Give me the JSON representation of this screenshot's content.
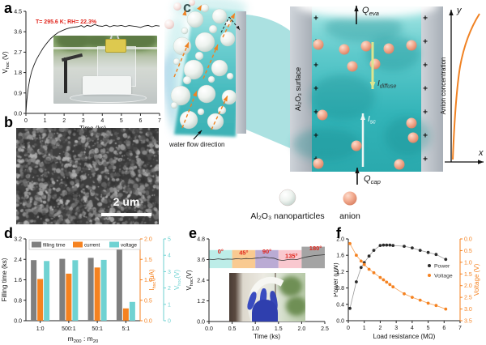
{
  "panels": {
    "a": "a",
    "b": "b",
    "c": "c",
    "d": "d",
    "e": "e",
    "f": "f"
  },
  "sem": {
    "scale_label": "2 um"
  },
  "diagram": {
    "q_eva": "Q~eva~",
    "q_cap": "Q~cap~",
    "i_diffuse": "I~diffuse~",
    "i_sc": "I~sc~",
    "surface_label": "Al₂O₃ surface",
    "flow_label": "water flow direction",
    "conc_label": "Anion concentration",
    "x_label": "x",
    "y_label": "y",
    "plus": "+",
    "legend": [
      {
        "type": "nanoparticle",
        "label": "Al₂O₃ nanoparticles"
      },
      {
        "type": "anion",
        "label": "anion"
      }
    ],
    "colors": {
      "water": "#33b4b8",
      "wall": "#b4bac1",
      "anion": "#f3ad92",
      "arrow_orange": "#f08223"
    }
  },
  "chart_data": [
    {
      "id": "a",
      "type": "line",
      "xlabel": "Time (ks)",
      "ylabel": "V~hoc~ (V)",
      "xlim": [
        0,
        7
      ],
      "ylim": [
        0,
        4.5
      ],
      "xticks": [
        {
          "v": 0,
          "l": "0"
        },
        {
          "v": 1,
          "l": "1"
        },
        {
          "v": 2,
          "l": "2"
        },
        {
          "v": 3,
          "l": "3"
        },
        {
          "v": 4,
          "l": "4"
        },
        {
          "v": 5,
          "l": "5"
        },
        {
          "v": 6,
          "l": "6"
        },
        {
          "v": 7,
          "l": "7"
        }
      ],
      "yticks": [
        {
          "v": 0,
          "l": "0.0"
        },
        {
          "v": 0.9,
          "l": "0.9"
        },
        {
          "v": 1.8,
          "l": "1.8"
        },
        {
          "v": 2.7,
          "l": "2.7"
        },
        {
          "v": 3.6,
          "l": "3.6"
        },
        {
          "v": 4.5,
          "l": "4.5"
        }
      ],
      "annotation": {
        "text": "T= 295.6 K; RH= 22.3%",
        "color": "#e0251c"
      },
      "series": [
        {
          "name": "open-circuit voltage",
          "color": "#1a1a1a",
          "points": [
            [
              0,
              0.02
            ],
            [
              0.04,
              0.5
            ],
            [
              0.08,
              0.85
            ],
            [
              0.12,
              1.1
            ],
            [
              0.2,
              1.5
            ],
            [
              0.3,
              1.85
            ],
            [
              0.42,
              2.12
            ],
            [
              0.55,
              2.38
            ],
            [
              0.7,
              2.6
            ],
            [
              0.9,
              2.88
            ],
            [
              1.1,
              3.1
            ],
            [
              1.3,
              3.3
            ],
            [
              1.5,
              3.45
            ],
            [
              1.7,
              3.57
            ],
            [
              1.9,
              3.65
            ],
            [
              2.1,
              3.72
            ],
            [
              2.3,
              3.77
            ],
            [
              2.5,
              3.8
            ],
            [
              2.7,
              3.82
            ],
            [
              2.9,
              3.87
            ],
            [
              3.05,
              3.8
            ],
            [
              3.2,
              3.88
            ],
            [
              3.4,
              3.84
            ],
            [
              3.6,
              3.92
            ],
            [
              3.8,
              3.86
            ],
            [
              4,
              3.84
            ],
            [
              4.2,
              3.89
            ],
            [
              4.4,
              3.82
            ],
            [
              4.6,
              3.87
            ],
            [
              4.8,
              3.85
            ],
            [
              5,
              3.88
            ],
            [
              5.2,
              3.83
            ],
            [
              5.4,
              3.87
            ],
            [
              5.6,
              3.85
            ],
            [
              5.8,
              3.83
            ],
            [
              6,
              3.79
            ],
            [
              6.2,
              3.85
            ],
            [
              6.4,
              3.88
            ],
            [
              6.6,
              3.82
            ],
            [
              6.8,
              3.87
            ],
            [
              7,
              3.85
            ]
          ]
        }
      ]
    },
    {
      "id": "d",
      "type": "grouped-bar",
      "categories": [
        "1:0",
        "500:1",
        "50:1",
        "5:1"
      ],
      "xlabel": "m~200~ : m~20~",
      "axes": [
        {
          "side": "left",
          "label": "Filling time (ks)",
          "lim": [
            0,
            3.2
          ],
          "color": "#222222",
          "ticks": [
            {
              "v": 0,
              "l": "0.0"
            },
            {
              "v": 0.8,
              "l": "0.8"
            },
            {
              "v": 1.6,
              "l": "1.6"
            },
            {
              "v": 2.4,
              "l": "2.4"
            },
            {
              "v": 3.2,
              "l": "3.2"
            }
          ]
        },
        {
          "side": "right",
          "label": "I~hsc~(μA)",
          "lim": [
            0,
            2
          ],
          "color": "#f58220",
          "ticks": [
            {
              "v": 0,
              "l": "0.0"
            },
            {
              "v": 0.5,
              "l": "0.5"
            },
            {
              "v": 1,
              "l": "1.0"
            },
            {
              "v": 1.5,
              "l": "1.5"
            },
            {
              "v": 2,
              "l": "2.0"
            }
          ]
        },
        {
          "side": "right2",
          "label": "V~hoc~(V)",
          "lim": [
            0,
            5
          ],
          "color": "#6fd2d2",
          "ticks": [
            {
              "v": 0,
              "l": "0"
            },
            {
              "v": 1,
              "l": "1"
            },
            {
              "v": 2,
              "l": "2"
            },
            {
              "v": 3,
              "l": "3"
            },
            {
              "v": 4,
              "l": "4"
            },
            {
              "v": 5,
              "l": "5"
            }
          ]
        }
      ],
      "series": [
        {
          "name": "filling time",
          "color": "#7f7f7f",
          "axis": 0,
          "values": [
            2.37,
            2.42,
            2.46,
            2.9
          ]
        },
        {
          "name": "current",
          "color": "#f58220",
          "axis": 1,
          "values": [
            1.02,
            1.15,
            1.3,
            0.3
          ]
        },
        {
          "name": "voltage",
          "color": "#6fd2d2",
          "axis": 2,
          "values": [
            3.65,
            3.7,
            3.72,
            1.15
          ]
        }
      ]
    },
    {
      "id": "e",
      "type": "line",
      "xlabel": "Time (ks)",
      "ylabel": "V~hoc~(V)",
      "xlim": [
        0,
        2.5
      ],
      "ylim": [
        0,
        4.8
      ],
      "xticks": [
        {
          "v": 0,
          "l": "0.0"
        },
        {
          "v": 0.5,
          "l": "0.5"
        },
        {
          "v": 1,
          "l": "1.0"
        },
        {
          "v": 1.5,
          "l": "1.5"
        },
        {
          "v": 2,
          "l": "2.0"
        },
        {
          "v": 2.5,
          "l": "2.5"
        }
      ],
      "yticks": [
        {
          "v": 0,
          "l": "0.0"
        },
        {
          "v": 1.2,
          "l": "1.2"
        },
        {
          "v": 2.4,
          "l": "2.4"
        },
        {
          "v": 3.6,
          "l": "3.6"
        },
        {
          "v": 4.8,
          "l": "4.8"
        }
      ],
      "band_label_color": "#e0251c",
      "bands": [
        {
          "label": "0°",
          "color": "#b7ebe6",
          "x": [
            0,
            0.5
          ],
          "y": [
            3.1,
            4.15
          ],
          "label_pos": [
            0.25,
            3.95
          ]
        },
        {
          "label": "45°",
          "color": "#f9c688",
          "x": [
            0.5,
            1
          ],
          "y": [
            3.1,
            4.15
          ],
          "label_pos": [
            0.75,
            3.88
          ]
        },
        {
          "label": "90°",
          "color": "#b4a4d0",
          "x": [
            1,
            1.5
          ],
          "y": [
            3.1,
            4.15
          ],
          "label_pos": [
            1.25,
            3.95
          ]
        },
        {
          "label": "135°",
          "color": "#f9c3cb",
          "x": [
            1.5,
            2
          ],
          "y": [
            3.1,
            4.15
          ],
          "label_pos": [
            1.78,
            3.7
          ]
        },
        {
          "label": "180°",
          "color": "#9c9c9c",
          "x": [
            2,
            2.5
          ],
          "y": [
            3.1,
            4.35
          ],
          "label_pos": [
            2.3,
            4.13
          ]
        }
      ],
      "series": [
        {
          "name": "bending voltage",
          "color": "#333333",
          "points": [
            [
              0,
              3.62
            ],
            [
              0.1,
              3.6
            ],
            [
              0.2,
              3.64
            ],
            [
              0.3,
              3.61
            ],
            [
              0.4,
              3.63
            ],
            [
              0.5,
              3.62
            ],
            [
              0.6,
              3.65
            ],
            [
              0.7,
              3.63
            ],
            [
              0.8,
              3.66
            ],
            [
              0.9,
              3.64
            ],
            [
              1,
              3.68
            ],
            [
              1.1,
              3.7
            ],
            [
              1.2,
              3.74
            ],
            [
              1.3,
              3.7
            ],
            [
              1.4,
              3.68
            ],
            [
              1.5,
              3.58
            ],
            [
              1.6,
              3.55
            ],
            [
              1.7,
              3.6
            ],
            [
              1.8,
              3.62
            ],
            [
              1.9,
              3.6
            ],
            [
              2,
              3.68
            ],
            [
              2.1,
              3.75
            ],
            [
              2.2,
              3.8
            ],
            [
              2.3,
              3.84
            ],
            [
              2.4,
              3.86
            ],
            [
              2.5,
              3.88
            ]
          ]
        }
      ]
    },
    {
      "id": "f",
      "type": "scatter-line-dual",
      "xlabel": "Load resistance (MΩ)",
      "xlim": [
        0,
        7
      ],
      "xticks": [
        {
          "v": 0,
          "l": "0"
        },
        {
          "v": 1,
          "l": "1"
        },
        {
          "v": 2,
          "l": "2"
        },
        {
          "v": 3,
          "l": "3"
        },
        {
          "v": 4,
          "l": "4"
        },
        {
          "v": 5,
          "l": "5"
        },
        {
          "v": 6,
          "l": "6"
        },
        {
          "v": 7,
          "l": "7"
        }
      ],
      "left_axis": {
        "label": "Power (μW)",
        "lim": [
          0,
          2
        ],
        "color": "#222222",
        "ticks": [
          {
            "v": 0,
            "l": "0.0"
          },
          {
            "v": 0.4,
            "l": "0.4"
          },
          {
            "v": 0.8,
            "l": "0.8"
          },
          {
            "v": 1.2,
            "l": "1.2"
          },
          {
            "v": 1.6,
            "l": "1.6"
          },
          {
            "v": 2,
            "l": "2.0"
          }
        ]
      },
      "right_axis": {
        "label": "Voltage (V)",
        "lim": [
          0,
          3.5
        ],
        "inverted": true,
        "color": "#f58220",
        "ticks": [
          {
            "v": 0,
            "l": "0.0"
          },
          {
            "v": 0.5,
            "l": "0.5"
          },
          {
            "v": 1,
            "l": "1.0"
          },
          {
            "v": 1.5,
            "l": "1.5"
          },
          {
            "v": 2,
            "l": "2.0"
          },
          {
            "v": 2.5,
            "l": "2.5"
          },
          {
            "v": 3,
            "l": "3.0"
          },
          {
            "v": 3.5,
            "l": "3.5"
          }
        ]
      },
      "x": [
        0.1,
        0.5,
        0.8,
        1,
        1.3,
        1.6,
        2,
        2.2,
        2.4,
        2.6,
        2.8,
        3.5,
        4,
        4.5,
        5,
        5.5,
        6.1
      ],
      "series": [
        {
          "name": "Power",
          "axis": "left",
          "color": "#2b2b2b",
          "line_color": "#9a9a9a",
          "values": [
            0.3,
            0.95,
            1.3,
            1.42,
            1.58,
            1.72,
            1.84,
            1.85,
            1.85,
            1.85,
            1.84,
            1.82,
            1.78,
            1.72,
            1.67,
            1.62,
            1.5
          ]
        },
        {
          "name": "Voltage",
          "axis": "right",
          "color": "#f58220",
          "line_color": "#f5a055",
          "values": [
            0.2,
            0.7,
            0.95,
            1.1,
            1.3,
            1.45,
            1.65,
            1.75,
            1.85,
            1.95,
            2.05,
            2.35,
            2.5,
            2.62,
            2.75,
            2.85,
            3.0
          ]
        }
      ],
      "legend": [
        "Power",
        "Voltage"
      ]
    }
  ]
}
